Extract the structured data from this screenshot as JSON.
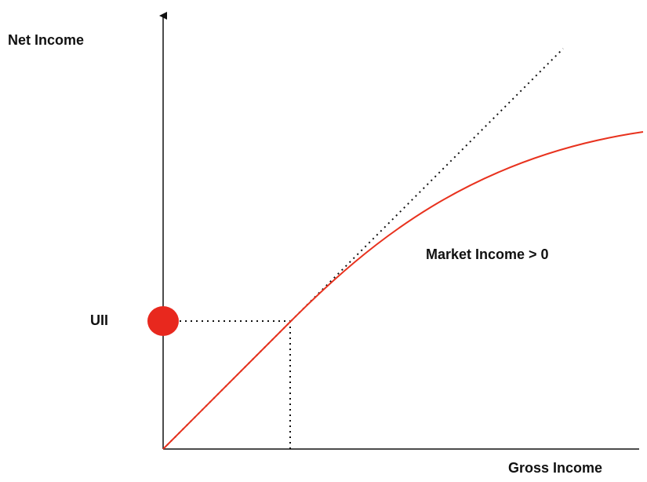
{
  "axes": {
    "y_label": "Net Income",
    "x_label": "Gross Income"
  },
  "labels": {
    "point": "UII",
    "region": "Market Income > 0"
  }
}
